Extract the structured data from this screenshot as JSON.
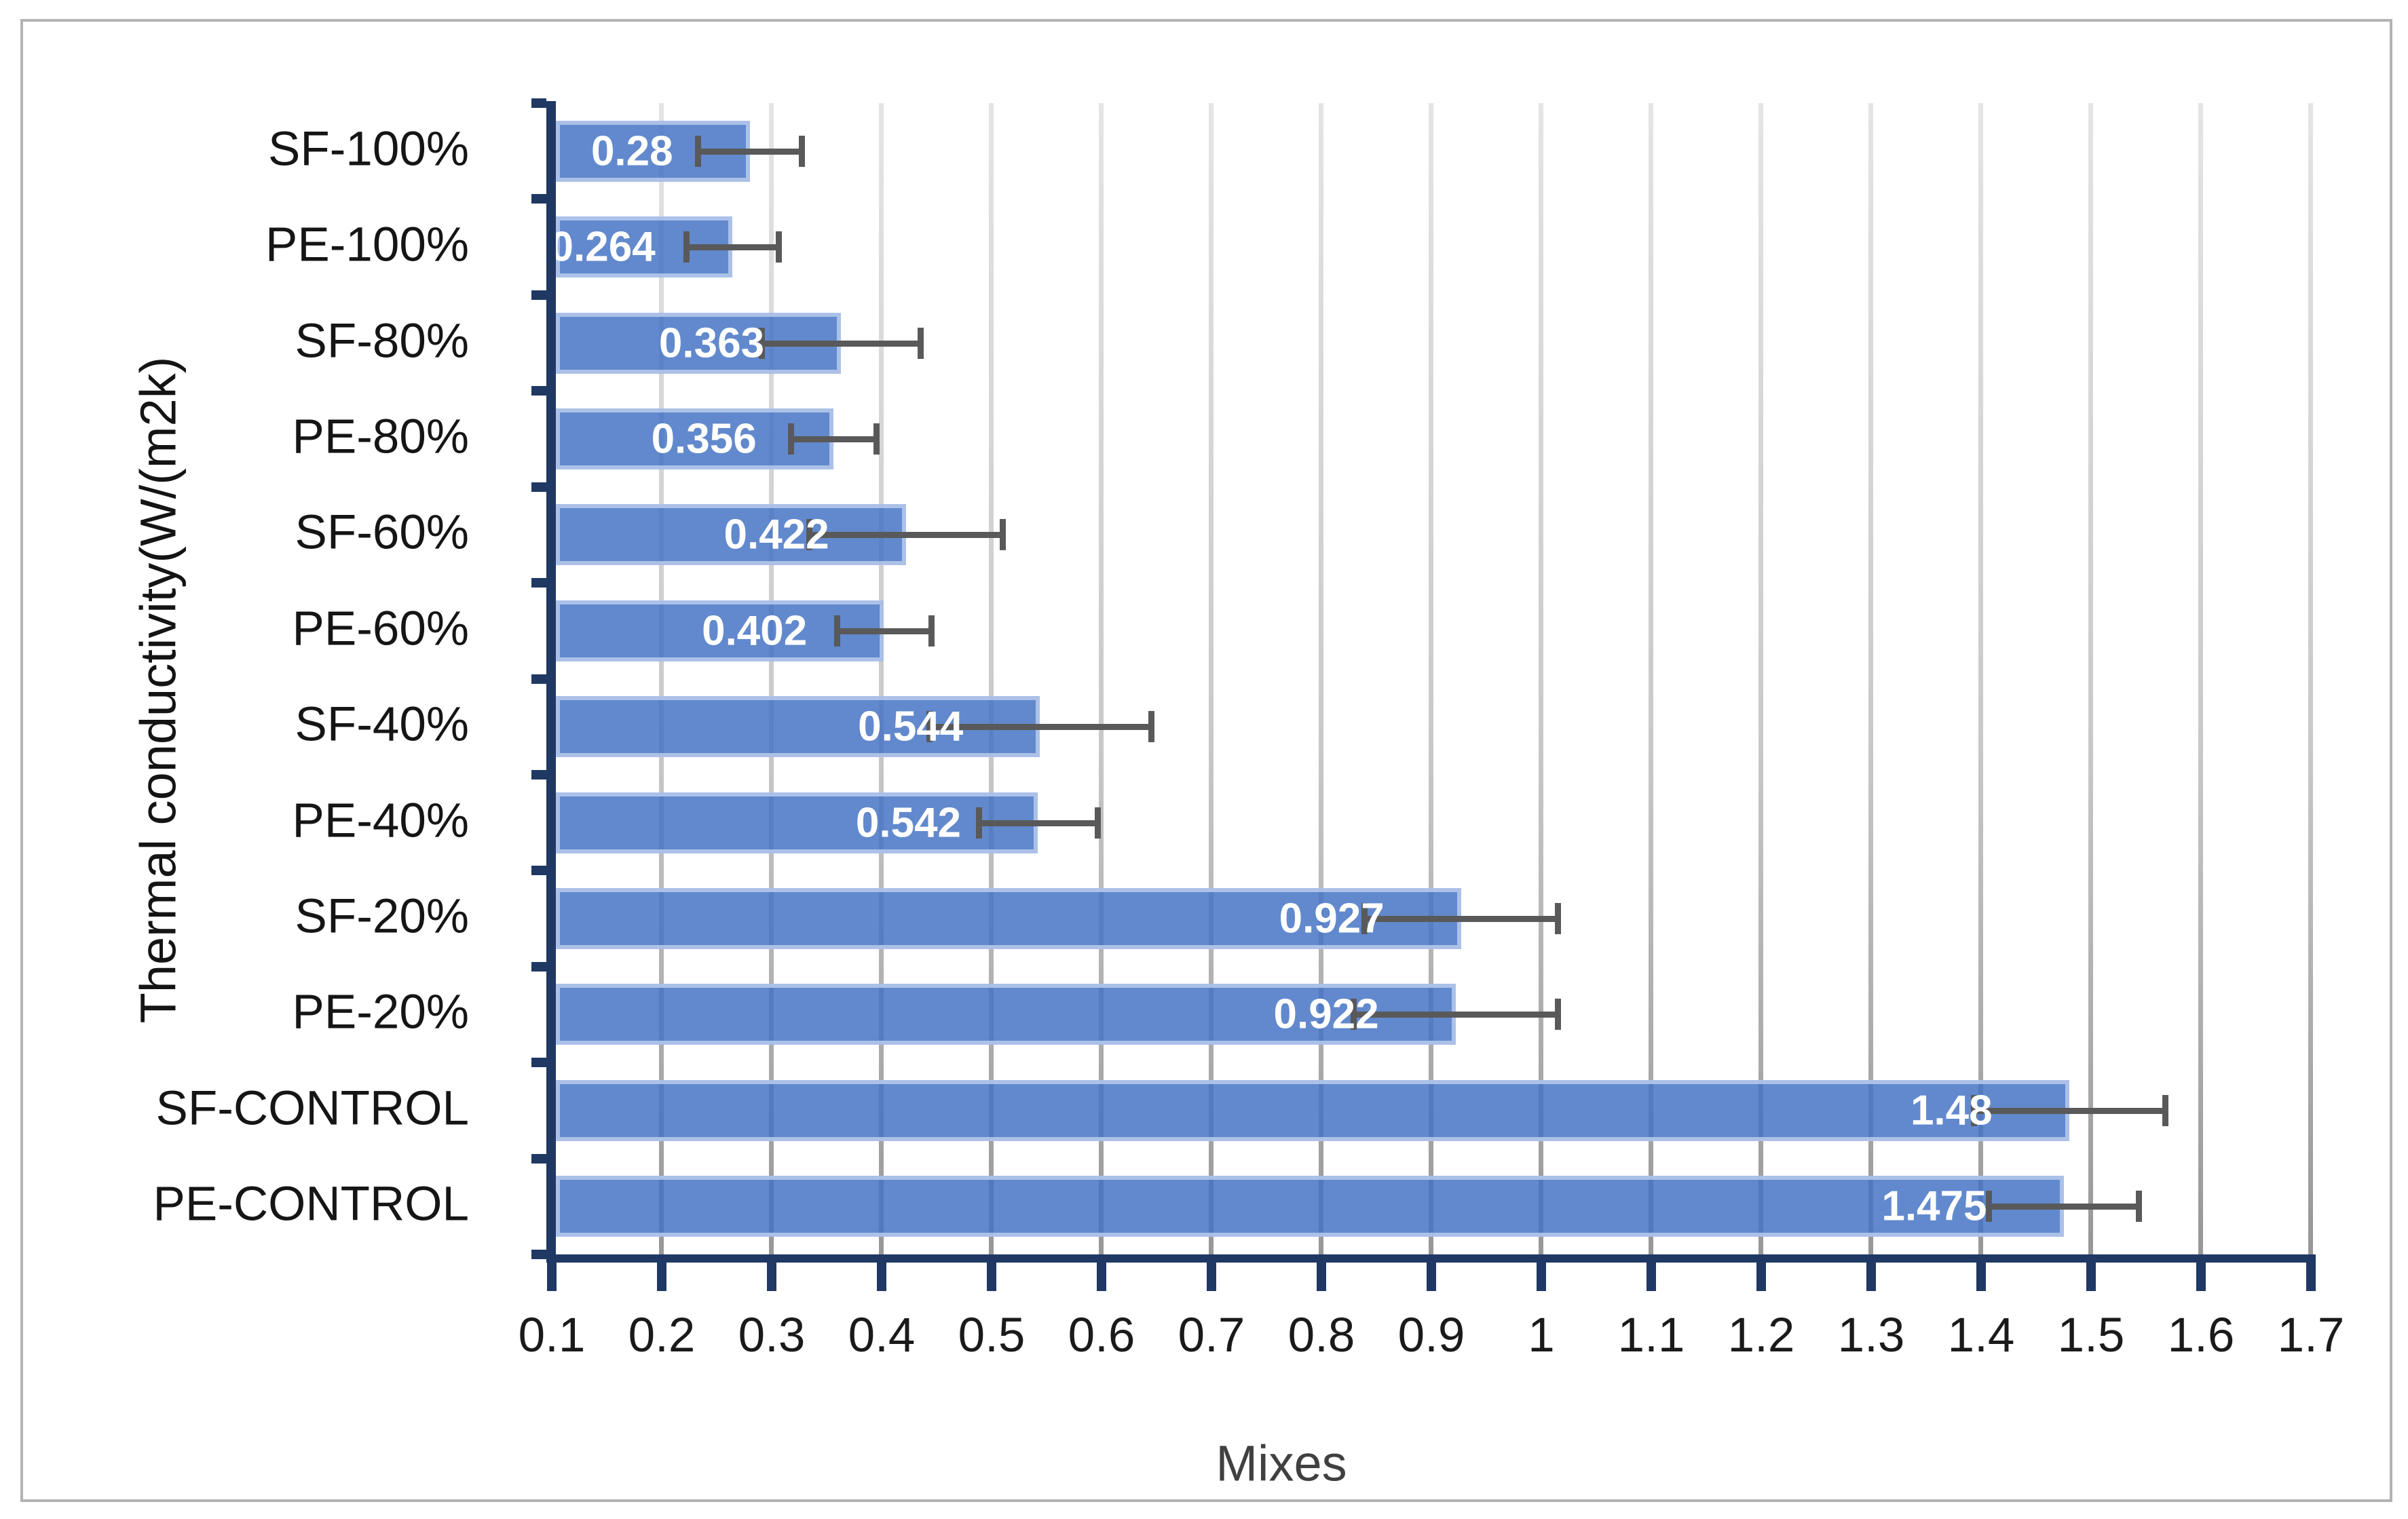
{
  "chart_data": {
    "type": "bar",
    "orientation": "horizontal",
    "title": "",
    "xlabel": "Mixes",
    "ylabel": "Thermal conductivity(W/(m2k)",
    "categories": [
      "SF-100%",
      "PE-100%",
      "SF-80%",
      "PE-80%",
      "SF-60%",
      "PE-60%",
      "SF-40%",
      "PE-40%",
      "SF-20%",
      "PE-20%",
      "SF-CONTROL",
      "PE-CONTROL"
    ],
    "values": [
      0.28,
      0.264,
      0.363,
      0.356,
      0.422,
      0.402,
      0.544,
      0.542,
      0.927,
      0.922,
      1.48,
      1.475
    ],
    "data_labels": [
      "0.28",
      "0.264",
      "0.363",
      "0.356",
      "0.422",
      "0.402",
      "0.544",
      "0.542",
      "0.927",
      "0.922",
      "1.48",
      "1.475"
    ],
    "error_plus": [
      0.047,
      0.042,
      0.072,
      0.039,
      0.088,
      0.043,
      0.101,
      0.054,
      0.088,
      0.093,
      0.087,
      0.068
    ],
    "error_minus": [
      0.047,
      0.042,
      0.072,
      0.039,
      0.088,
      0.043,
      0.101,
      0.054,
      0.088,
      0.093,
      0.087,
      0.068
    ],
    "x_tick_labels": [
      "0.1",
      "0.2",
      "0.3",
      "0.4",
      "0.5",
      "0.6",
      "0.7",
      "0.8",
      "0.9",
      "1",
      "1.1",
      "1.2",
      "1.3",
      "1.4",
      "1.5",
      "1.6",
      "1.7"
    ],
    "xlim": [
      0.1,
      1.7
    ],
    "grid": "vertical-major",
    "legend": "none",
    "colors": {
      "bar_fill": "#4472C4",
      "bar_border": "#B1C6EA",
      "axis_line": "#1F3864",
      "gridline_top": "#E4E4E4",
      "gridline_bottom": "#979797",
      "error_bar": "#595959",
      "data_label": "#FFFFFF",
      "tick_label": "#1A1A1A",
      "category_label": "#151515",
      "x_axis_title": "#404040",
      "chart_border": "#B3B3B3"
    }
  }
}
